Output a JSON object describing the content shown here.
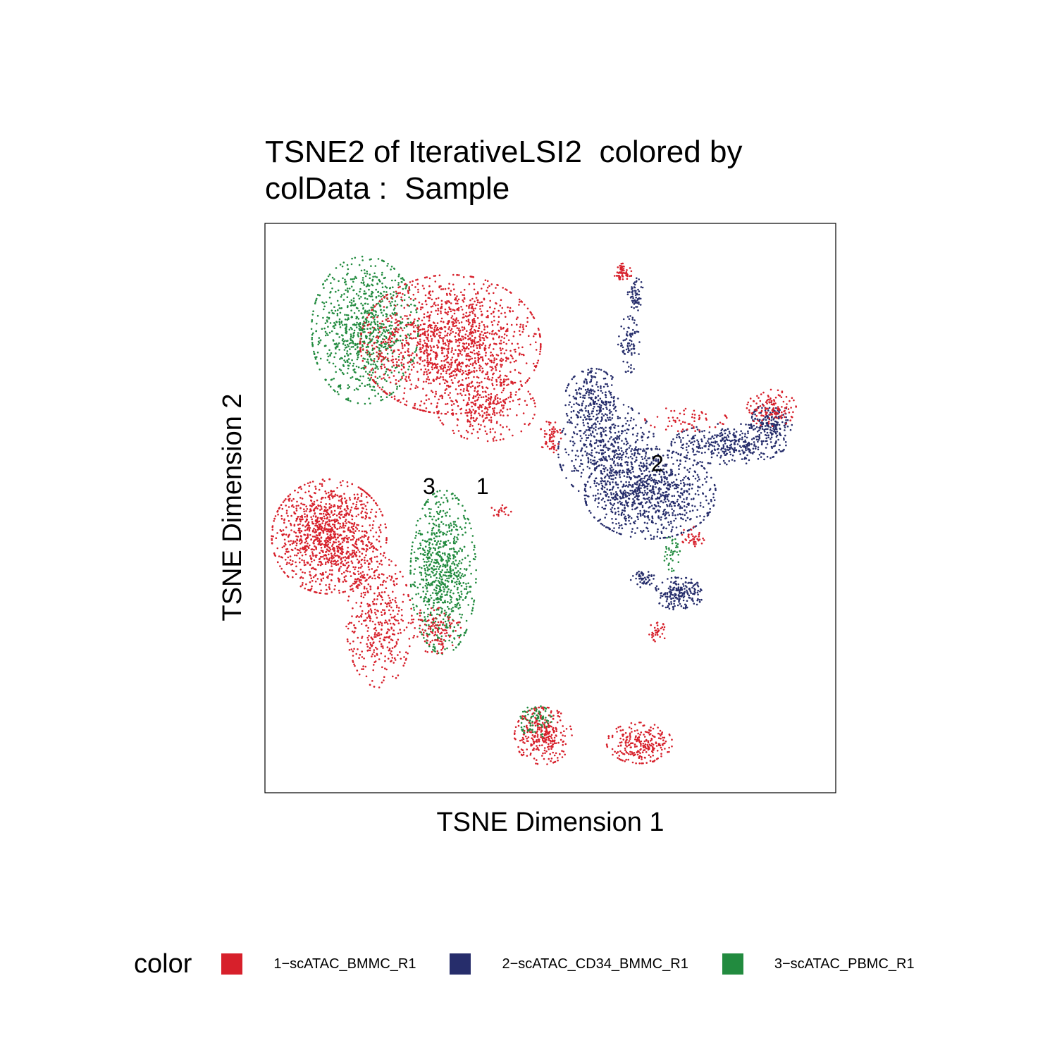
{
  "chart_data": {
    "type": "scatter",
    "title_lines": [
      "TSNE2 of IterativeLSI2  colored by",
      "colData :  Sample"
    ],
    "xlabel": "TSNE Dimension 1",
    "ylabel": "TSNE Dimension 2",
    "xlim": [
      -40,
      40
    ],
    "ylim": [
      -40,
      40
    ],
    "grid": false,
    "axis_ticks": false,
    "legend": {
      "title": "color",
      "placement": "bottom",
      "items": [
        {
          "label": "1−scATAC_BMMC_R1",
          "color": "#d7202b"
        },
        {
          "label": "2−scATAC_CD34_BMMC_R1",
          "color": "#262d6b"
        },
        {
          "label": "3−scATAC_PBMC_R1",
          "color": "#228b3f"
        }
      ]
    },
    "cluster_labels": [
      {
        "text": "3",
        "x": -17,
        "y": 2
      },
      {
        "text": "1",
        "x": -9.5,
        "y": 2
      },
      {
        "text": "2",
        "x": 15,
        "y": 5.2
      }
    ],
    "clusters": [
      {
        "series": 2,
        "cx": -26,
        "cy": 25,
        "rx": 6.5,
        "ry": 9,
        "n": 900
      },
      {
        "series": 0,
        "cx": -14,
        "cy": 23,
        "rx": 11,
        "ry": 8.5,
        "n": 1500
      },
      {
        "series": 0,
        "cx": -9,
        "cy": 14,
        "rx": 6,
        "ry": 4,
        "n": 250
      },
      {
        "series": 0,
        "cx": 10,
        "cy": 33,
        "rx": 1.2,
        "ry": 1.2,
        "n": 60
      },
      {
        "series": 1,
        "cx": 12,
        "cy": 30,
        "rx": 1,
        "ry": 2,
        "n": 60
      },
      {
        "series": 1,
        "cx": 11,
        "cy": 23,
        "rx": 1.3,
        "ry": 3.5,
        "n": 80
      },
      {
        "series": 1,
        "cx": 6,
        "cy": 15,
        "rx": 3.5,
        "ry": 4,
        "n": 250
      },
      {
        "series": 1,
        "cx": 8,
        "cy": 8,
        "rx": 6,
        "ry": 6,
        "n": 500
      },
      {
        "series": 1,
        "cx": 14,
        "cy": 2,
        "rx": 8,
        "ry": 5.5,
        "n": 900
      },
      {
        "series": 1,
        "cx": 25,
        "cy": 9,
        "rx": 7,
        "ry": 2.5,
        "n": 380
      },
      {
        "series": 1,
        "cx": 31,
        "cy": 12,
        "rx": 2.5,
        "ry": 2.5,
        "n": 160
      },
      {
        "series": 0,
        "cx": 31,
        "cy": 14,
        "rx": 3,
        "ry": 2.3,
        "n": 130
      },
      {
        "series": 0,
        "cx": 19,
        "cy": 12.5,
        "rx": 5,
        "ry": 1.5,
        "n": 60
      },
      {
        "series": 0,
        "cx": 0,
        "cy": 10,
        "rx": 1.3,
        "ry": 2,
        "n": 60
      },
      {
        "series": 0,
        "cx": 20,
        "cy": -4,
        "rx": 1.5,
        "ry": 1.2,
        "n": 40
      },
      {
        "series": 0,
        "cx": -7,
        "cy": -0.5,
        "rx": 1.3,
        "ry": 0.8,
        "n": 20
      },
      {
        "series": 0,
        "cx": -31,
        "cy": -4,
        "rx": 7,
        "ry": 7,
        "n": 1200
      },
      {
        "series": 0,
        "cx": -24,
        "cy": -16,
        "rx": 4,
        "ry": 8,
        "n": 400
      },
      {
        "series": 2,
        "cx": -15,
        "cy": -9,
        "rx": 4,
        "ry": 10,
        "n": 800
      },
      {
        "series": 0,
        "cx": -16,
        "cy": -17,
        "rx": 3,
        "ry": 3,
        "n": 120
      },
      {
        "series": 2,
        "cx": 17,
        "cy": -6,
        "rx": 1,
        "ry": 2.5,
        "n": 40
      },
      {
        "series": 1,
        "cx": 18,
        "cy": -12,
        "rx": 3,
        "ry": 2,
        "n": 200
      },
      {
        "series": 1,
        "cx": 13,
        "cy": -10,
        "rx": 1.5,
        "ry": 1,
        "n": 50
      },
      {
        "series": 0,
        "cx": 15,
        "cy": -17.5,
        "rx": 1,
        "ry": 1.5,
        "n": 35
      },
      {
        "series": 0,
        "cx": -1,
        "cy": -32,
        "rx": 3.5,
        "ry": 3.5,
        "n": 300
      },
      {
        "series": 2,
        "cx": -2,
        "cy": -30,
        "rx": 2,
        "ry": 2,
        "n": 80
      },
      {
        "series": 0,
        "cx": 12.5,
        "cy": -33,
        "rx": 4,
        "ry": 2.5,
        "n": 250
      }
    ]
  }
}
